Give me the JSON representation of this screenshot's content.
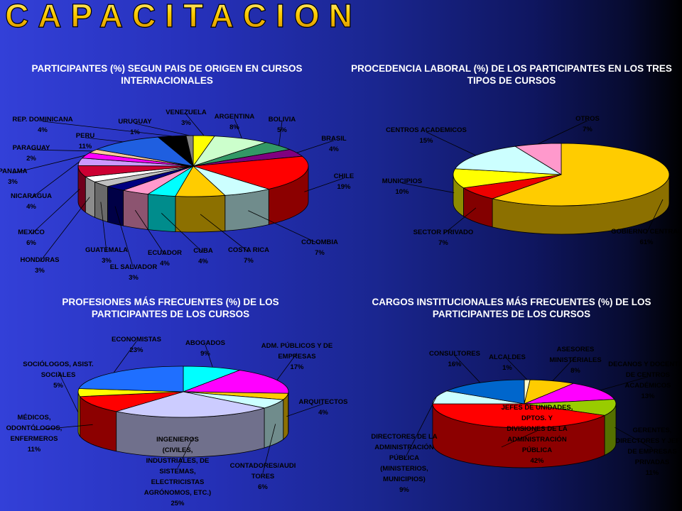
{
  "header": {
    "title": "CAPACITACION"
  },
  "colors": {
    "title_gold": "#f5b400",
    "label_text": "#000000"
  },
  "chart_data": [
    {
      "type": "pie",
      "title": "PARTICIPANTES (%)  SEGUN PAIS DE ORIGEN EN CURSOS INTERNACIONALES",
      "slices": [
        {
          "label": "VENEZUELA",
          "value": 3,
          "color": "#ffff00"
        },
        {
          "label": "ARGENTINA",
          "value": 8,
          "color": "#ccffcc"
        },
        {
          "label": "BOLIVIA",
          "value": 5,
          "color": "#339966"
        },
        {
          "label": "BRASIL",
          "value": 4,
          "color": "#800080"
        },
        {
          "label": "CHILE",
          "value": 19,
          "color": "#ff0000"
        },
        {
          "label": "COLOMBIA",
          "value": 7,
          "color": "#ccffff"
        },
        {
          "label": "COSTA RICA",
          "value": 7,
          "color": "#ffcc00"
        },
        {
          "label": "CUBA",
          "value": 4,
          "color": "#00ffff"
        },
        {
          "label": "ECUADOR",
          "value": 4,
          "color": "#ff99cc"
        },
        {
          "label": "EL SALVADOR",
          "value": 3,
          "color": "#000080"
        },
        {
          "label": "GUATEMALA",
          "value": 3,
          "color": "#c0c0c0"
        },
        {
          "label": "HONDURAS",
          "value": 3,
          "color": "#ffffff"
        },
        {
          "label": "MEXICO",
          "value": 6,
          "color": "#cc0033"
        },
        {
          "label": "NICARAGUA",
          "value": 4,
          "color": "#cc99ff"
        },
        {
          "label": "PANAMA",
          "value": 3,
          "color": "#ff00ff"
        },
        {
          "label": "PARAGUAY",
          "value": 2,
          "color": "#ffcc99"
        },
        {
          "label": "PERU",
          "value": 11,
          "color": "#1f5fe0"
        },
        {
          "label": "REP. DOMINICANA",
          "value": 4,
          "color": "#000000"
        },
        {
          "label": "URUGUAY",
          "value": 1,
          "color": "#808080"
        }
      ]
    },
    {
      "type": "pie",
      "title": "PROCEDENCIA LABORAL (%) DE LOS PARTICIPANTES EN LOS TRES TIPOS DE CURSOS",
      "slices": [
        {
          "label": "GOBIERNO CENTRAL",
          "value": 61,
          "color": "#ffcc00"
        },
        {
          "label": "SECTOR PRIVADO",
          "value": 7,
          "color": "#ee0000"
        },
        {
          "label": "MUNICIPIOS",
          "value": 10,
          "color": "#ffff00"
        },
        {
          "label": "CENTROS ACADEMICOS",
          "value": 15,
          "color": "#ccffff"
        },
        {
          "label": "OTROS",
          "value": 7,
          "color": "#ff99cc"
        }
      ]
    },
    {
      "type": "pie",
      "title": "PROFESIONES MÁS FRECUENTES (%) DE LOS PARTICIPANTES DE LOS CURSOS",
      "slices": [
        {
          "label": "ABOGADOS",
          "value": 9,
          "color": "#00ffff"
        },
        {
          "label": "ADM. PÚBLICOS Y DE EMPRESAS",
          "value": 17,
          "color": "#ff00ff"
        },
        {
          "label": "ARQUITECTOS",
          "value": 4,
          "color": "#ffcc00"
        },
        {
          "label": "CONTADORES/AUDI TORES",
          "value": 6,
          "color": "#ccffff"
        },
        {
          "label": "INGENIEROS (CIVILES, INDUSTRIALES, DE SISTEMAS, ELECTRICISTAS AGRÓNOMOS, ETC.)",
          "value": 25,
          "color": "#ccccff"
        },
        {
          "label": "MÉDICOS, ODONTÓLOGOS, ENFERMEROS",
          "value": 11,
          "color": "#ff0000"
        },
        {
          "label": "SOCIÓLOGOS, ASIST. SOCIALES",
          "value": 5,
          "color": "#ffff00"
        },
        {
          "label": "ECONOMISTAS",
          "value": 23,
          "color": "#1f6fff"
        }
      ]
    },
    {
      "type": "pie",
      "title": "CARGOS INSTITUCIONALES MÁS FRECUENTES (%) DE LOS PARTICIPANTES DE LOS CURSOS",
      "slices": [
        {
          "label": "ALCALDES",
          "value": 1,
          "color": "#ffffcc"
        },
        {
          "label": "ASESORES MINISTERIALES",
          "value": 8,
          "color": "#ffcc00"
        },
        {
          "label": "DECANOS Y DOCENTES DE CENTROS ACADÉMICOS",
          "value": 13,
          "color": "#ff00ff"
        },
        {
          "label": "GERENTES, DIRECTORES Y JEFES DE EMPRESAS PRIVADAS",
          "value": 11,
          "color": "#99cc00"
        },
        {
          "label": "JEFES DE UNIDADES, DPTOS. Y DIVISIONES DE LA ADMINISTRACIÓN PÚBLICA",
          "value": 42,
          "color": "#ff0000"
        },
        {
          "label": "DIRECTORES DE LA ADMINISTRACIÓN PÚBLICA (MINISTERIOS, MUNICIPIOS)",
          "value": 9,
          "color": "#ccffff"
        },
        {
          "label": "CONSULTORES",
          "value": 16,
          "color": "#0066cc"
        }
      ]
    }
  ]
}
